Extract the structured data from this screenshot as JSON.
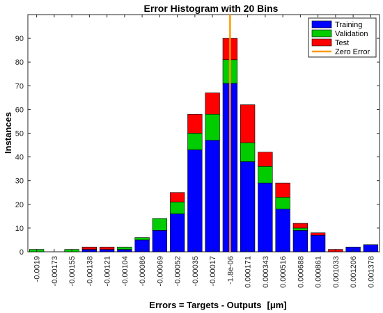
{
  "chart_data": {
    "type": "bar",
    "stacked": true,
    "title": "Error Histogram with 20 Bins",
    "xlabel": "Errors = Targets - Outputs",
    "xlabel_unit": "[μm]",
    "ylabel": "Instances",
    "ylim": [
      0,
      100
    ],
    "yticks": [
      0,
      10,
      20,
      30,
      40,
      50,
      60,
      70,
      80,
      90
    ],
    "categories": [
      "-0.0019",
      "-0.00173",
      "-0.00155",
      "-0.00138",
      "-0.00121",
      "-0.00104",
      "-0.00086",
      "-0.00069",
      "-0.00052",
      "-0.00035",
      "-0.00017",
      "-1.8e-06",
      "0.000171",
      "0.000343",
      "0.000516",
      "0.000688",
      "0.000861",
      "0.001033",
      "0.001206",
      "0.001378"
    ],
    "series": [
      {
        "name": "Training",
        "color": "#0000ff",
        "values": [
          0,
          0,
          0,
          1,
          1,
          1,
          5,
          9,
          16,
          43,
          47,
          71,
          38,
          29,
          18,
          9,
          7,
          0,
          2,
          3
        ]
      },
      {
        "name": "Validation",
        "color": "#00cc00",
        "values": [
          1,
          0,
          1,
          0,
          0,
          1,
          1,
          5,
          5,
          7,
          11,
          10,
          8,
          7,
          5,
          1,
          0,
          0,
          0,
          0
        ]
      },
      {
        "name": "Test",
        "color": "#ff0000",
        "values": [
          0,
          0,
          0,
          1,
          1,
          0,
          0,
          0,
          4,
          8,
          9,
          9,
          16,
          6,
          6,
          2,
          1,
          1,
          0,
          0
        ]
      }
    ],
    "zero_error": {
      "name": "Zero Error",
      "color": "#ff9900",
      "category_index": 11
    },
    "grid": false,
    "legend": "top-right"
  }
}
